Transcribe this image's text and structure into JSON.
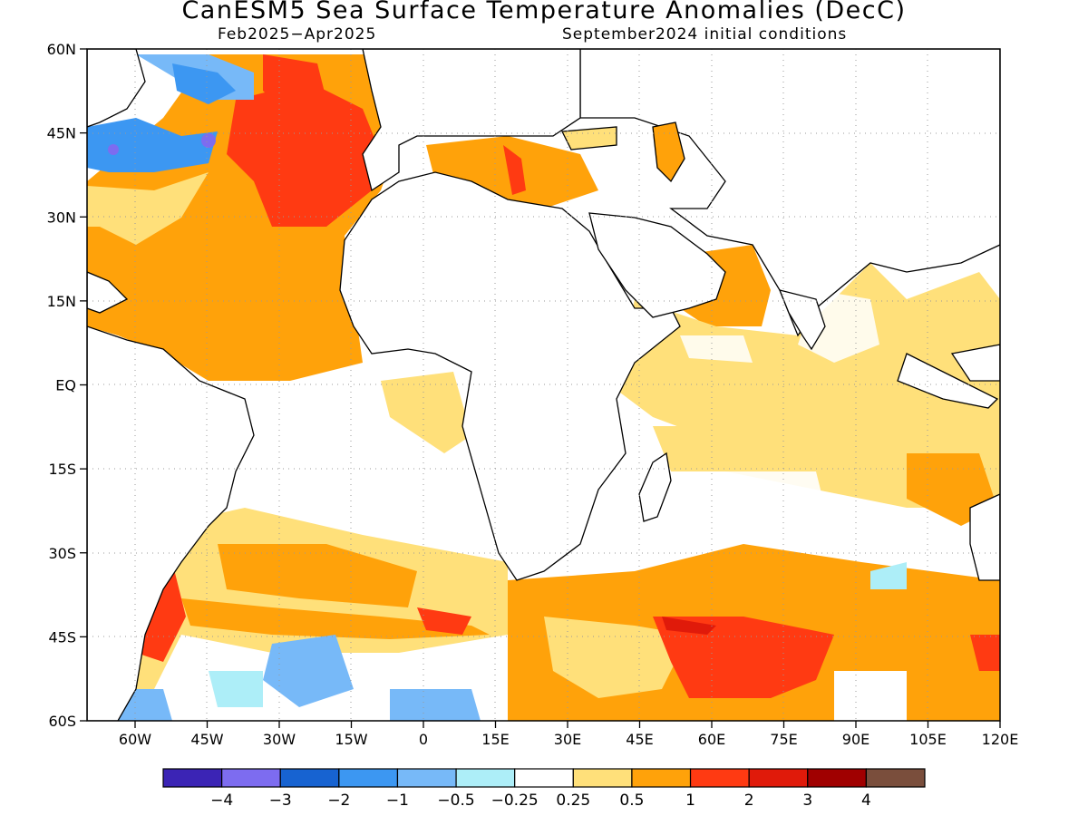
{
  "title": "CanESM5 Sea Surface Temperature Anomalies (DecC)",
  "period": "Feb2025−Apr2025",
  "initial_conditions": "September2024 initial conditions",
  "map": {
    "lon_range": [
      -70,
      120
    ],
    "lat_range": [
      -60,
      60
    ],
    "lat_ticks": [
      "60N",
      "45N",
      "30N",
      "15N",
      "EQ",
      "15S",
      "30S",
      "45S",
      "60S"
    ],
    "lon_ticks": [
      "60W",
      "45W",
      "30W",
      "15W",
      "0",
      "15E",
      "30E",
      "45E",
      "60E",
      "75E",
      "90E",
      "105E",
      "120E"
    ],
    "grid": true
  },
  "colorbar": {
    "colors": [
      "#3b24b5",
      "#7d6cf0",
      "#1763d1",
      "#3c97f2",
      "#77b9f8",
      "#adeef8",
      "#ffffff",
      "#ffe07a",
      "#ffa20a",
      "#ff3a12",
      "#e01a0a",
      "#a00000",
      "#7a4e3c"
    ],
    "labels": [
      "−4",
      "−3",
      "−2",
      "−1",
      "−0.5",
      "−0.25",
      "0.25",
      "0.5",
      "1",
      "2",
      "3",
      "4"
    ]
  }
}
